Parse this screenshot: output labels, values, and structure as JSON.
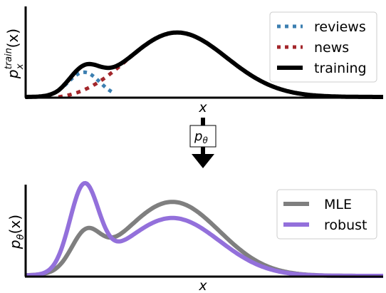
{
  "chart_data": [
    {
      "type": "line",
      "ylabel_main": "p",
      "ylabel_sub": "x",
      "ylabel_sup": "train",
      "ylabel_arg": "(x)",
      "xlabel": "x",
      "legend_placement": "top-right",
      "series": [
        {
          "name": "reviews",
          "style": "dotted",
          "color": "#3c7fb1"
        },
        {
          "name": "news",
          "style": "dotted",
          "color": "#a3262b"
        },
        {
          "name": "training",
          "style": "solid",
          "color": "#000000"
        }
      ]
    },
    {
      "type": "line",
      "ylabel_main": "p",
      "ylabel_sub": "θ",
      "ylabel_arg": "(x)",
      "xlabel": "x",
      "legend_placement": "top-right",
      "series": [
        {
          "name": "MLE",
          "style": "solid",
          "color": "#7f7f7f"
        },
        {
          "name": "robust",
          "style": "solid",
          "color": "#9370db"
        }
      ]
    }
  ],
  "arrow": {
    "main": "p",
    "sub": "θ"
  }
}
